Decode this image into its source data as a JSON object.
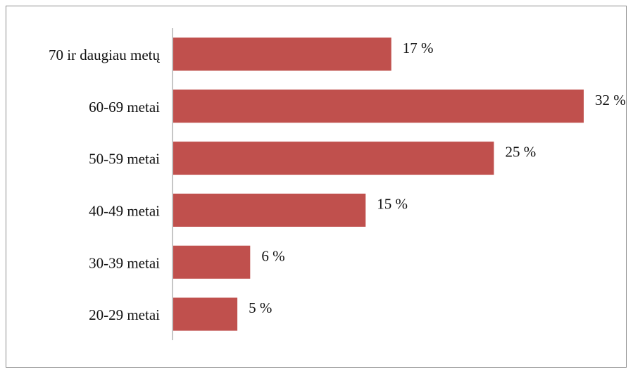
{
  "chart_data": {
    "type": "bar",
    "orientation": "horizontal",
    "categories": [
      "70 ir daugiau metų",
      "60-69 metai",
      "50-59 metai",
      "40-49 metai",
      "30-39 metai",
      "20-29 metai"
    ],
    "values": [
      17,
      32,
      25,
      15,
      6,
      5
    ],
    "data_labels": [
      "17 %",
      "32 %",
      "25 %",
      "15 %",
      "6 %",
      "5 %"
    ],
    "unit": "%",
    "xlim": [
      0,
      32
    ],
    "grid": false,
    "legend": "none",
    "bar_color": "#c0504d",
    "axis_color": "#8c8c8c",
    "title": "",
    "xlabel": "",
    "ylabel": ""
  }
}
